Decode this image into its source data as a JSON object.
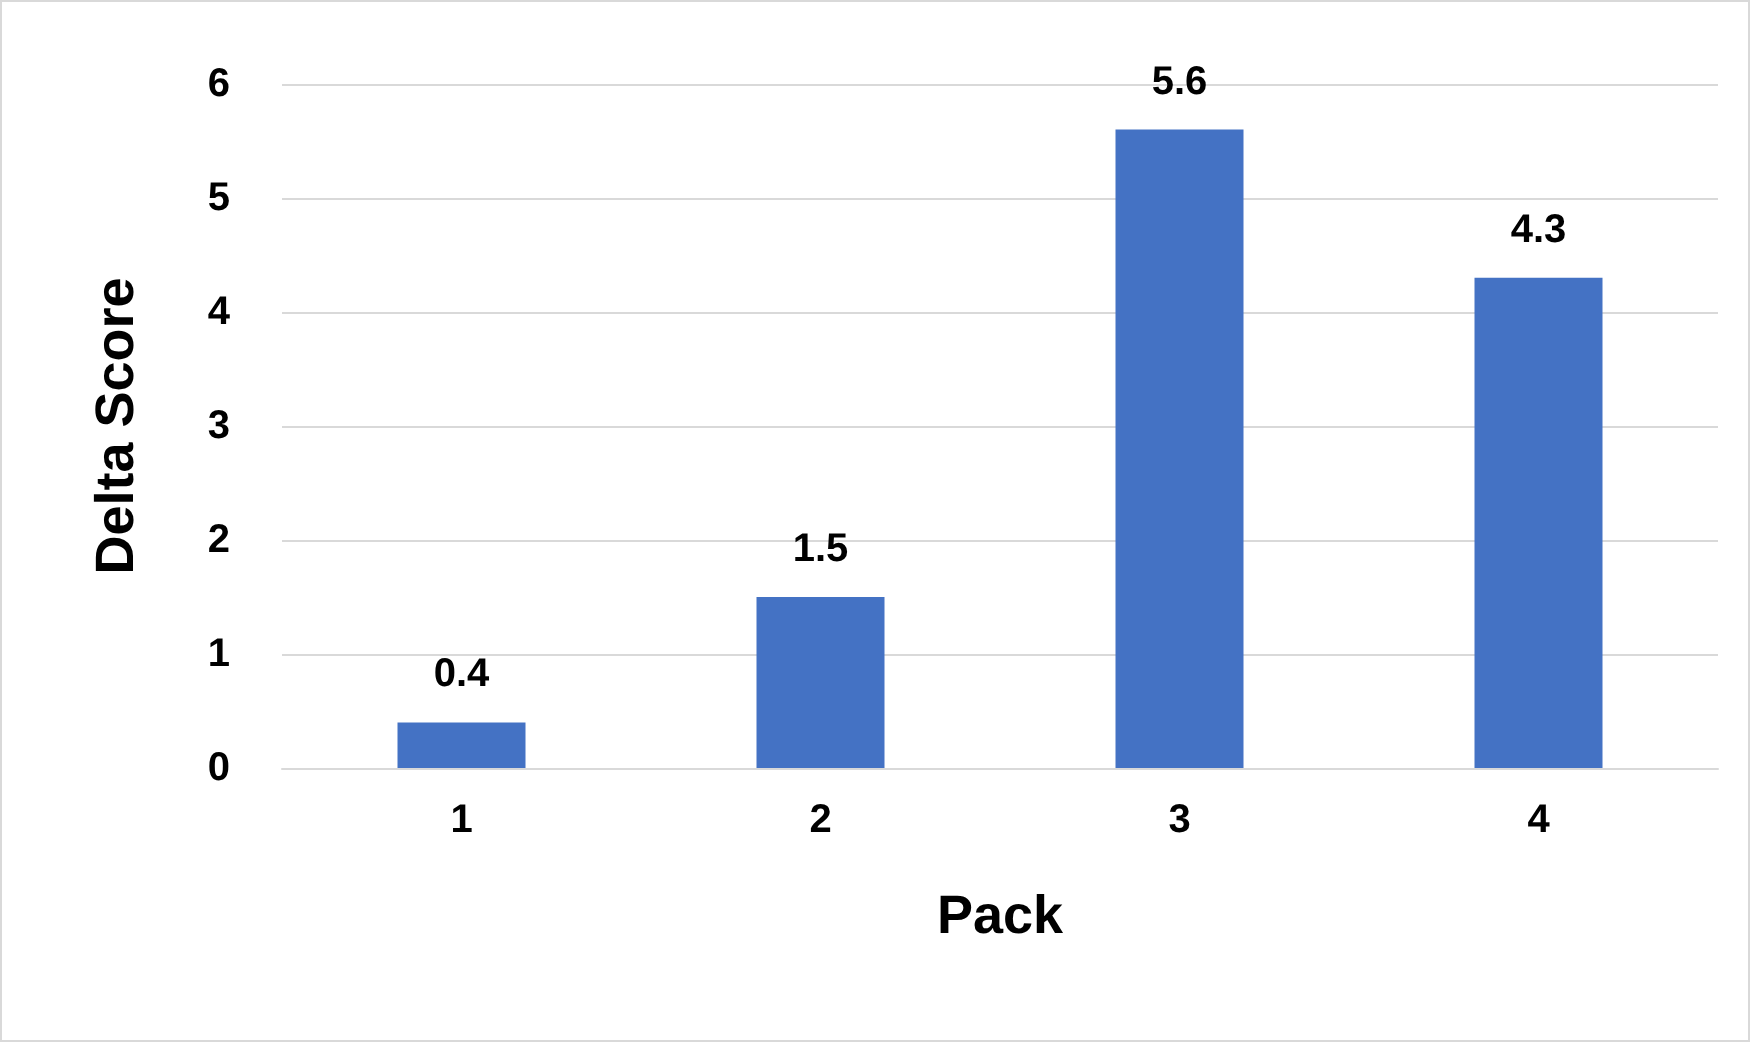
{
  "chart_data": {
    "type": "bar",
    "xlabel": "Pack",
    "ylabel": "Delta Score",
    "categories": [
      "1",
      "2",
      "3",
      "4"
    ],
    "values": [
      0.4,
      1.5,
      5.6,
      4.3
    ],
    "color": "#4472c4",
    "ylim": [
      0,
      6
    ],
    "yticks": [
      0,
      1,
      2,
      3,
      4,
      5,
      6
    ],
    "grid": "y",
    "data_labels": true
  }
}
